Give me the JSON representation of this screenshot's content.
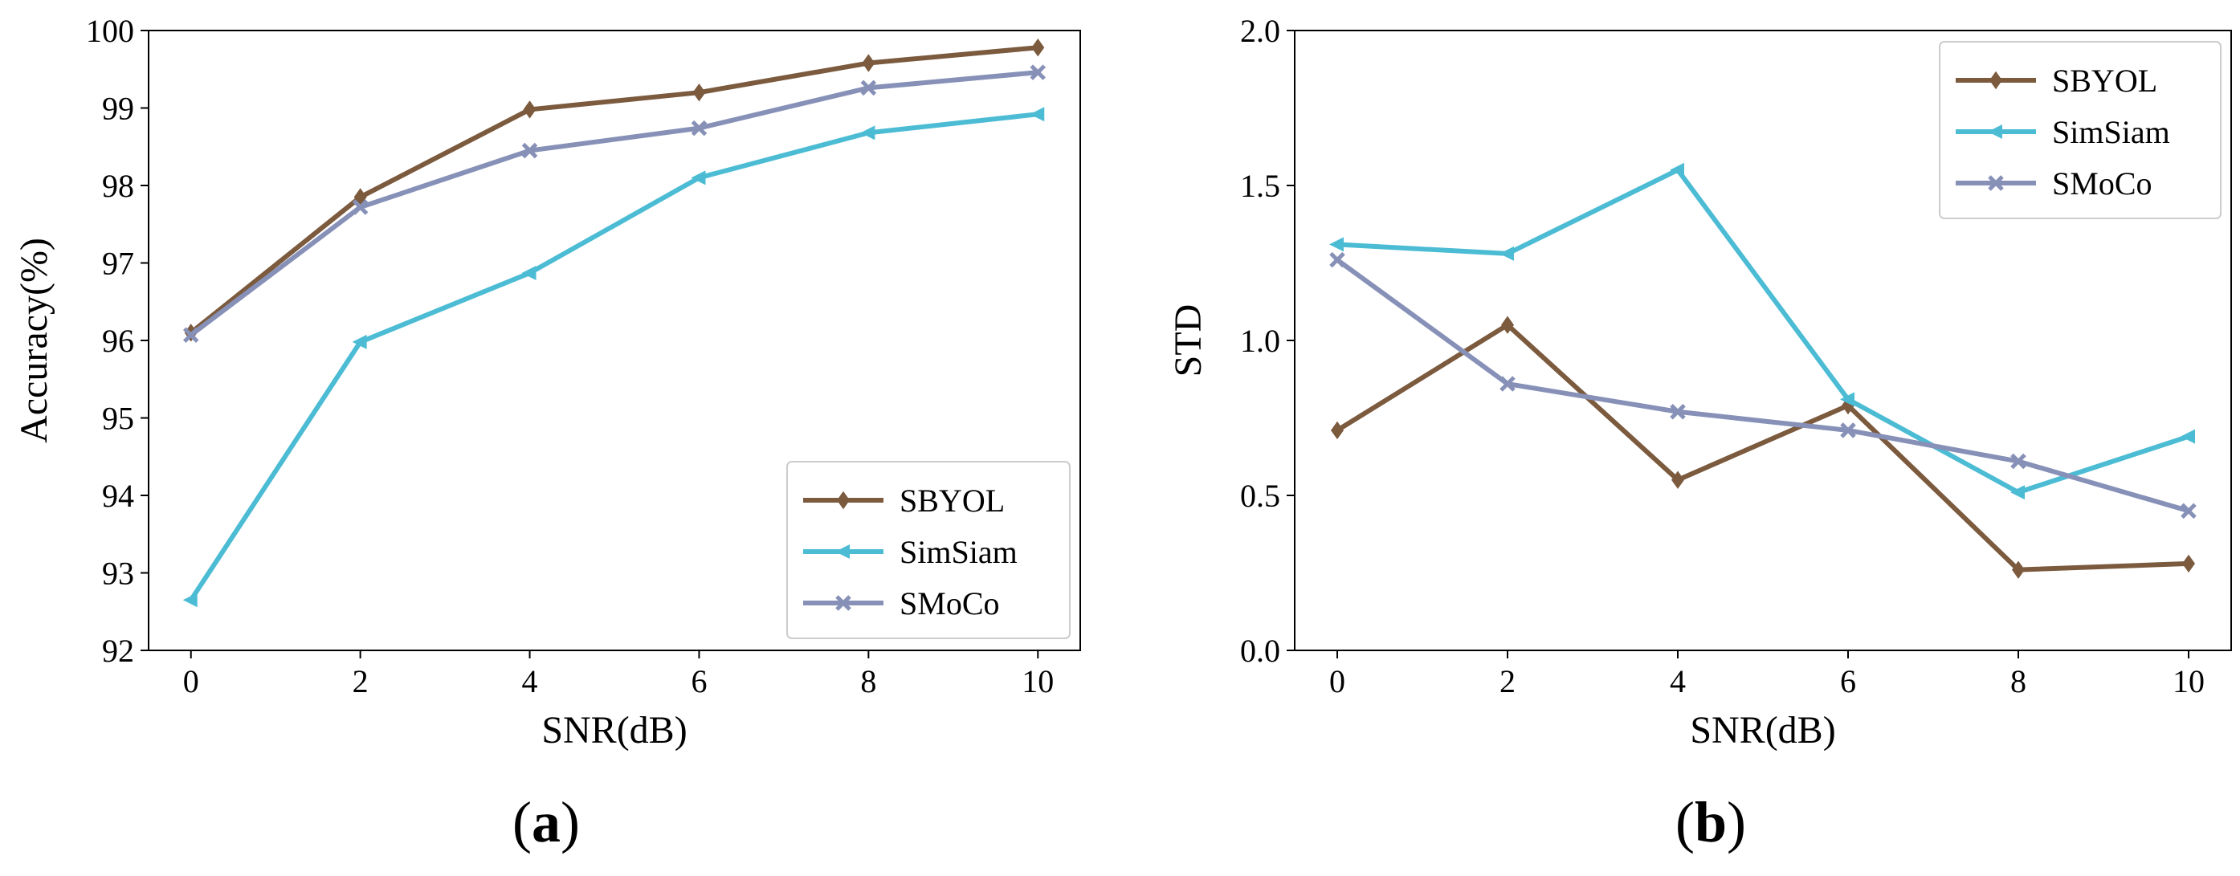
{
  "chart_data": [
    {
      "type": "line",
      "panel_label": "a",
      "xlabel": "SNR(dB)",
      "ylabel": "Accuracy(%)",
      "x": [
        0,
        2,
        4,
        6,
        8,
        10
      ],
      "xticks": [
        "0",
        "2",
        "4",
        "6",
        "8",
        "10"
      ],
      "ylim": [
        92,
        100
      ],
      "yticks": [
        "92",
        "93",
        "94",
        "95",
        "96",
        "97",
        "98",
        "99",
        "100"
      ],
      "grid": false,
      "legend_position": "bottom-right",
      "series": [
        {
          "name": "SBYOL",
          "color": "#7b5a3e",
          "marker": "diamond",
          "values": [
            96.1,
            97.85,
            98.98,
            99.2,
            99.58,
            99.78
          ]
        },
        {
          "name": "SimSiam",
          "color": "#4cbcd4",
          "marker": "triangle-left",
          "values": [
            92.65,
            95.98,
            96.87,
            98.1,
            98.68,
            98.92
          ]
        },
        {
          "name": "SMoCo",
          "color": "#8791b8",
          "marker": "x",
          "values": [
            96.07,
            97.72,
            98.45,
            98.74,
            99.26,
            99.46
          ]
        }
      ]
    },
    {
      "type": "line",
      "panel_label": "b",
      "xlabel": "SNR(dB)",
      "ylabel": "STD",
      "x": [
        0,
        2,
        4,
        6,
        8,
        10
      ],
      "xticks": [
        "0",
        "2",
        "4",
        "6",
        "8",
        "10"
      ],
      "ylim": [
        0.0,
        2.0
      ],
      "yticks": [
        "0.0",
        "0.5",
        "1.0",
        "1.5",
        "2.0"
      ],
      "grid": false,
      "legend_position": "top-right",
      "series": [
        {
          "name": "SBYOL",
          "color": "#7b5a3e",
          "marker": "diamond",
          "values": [
            0.71,
            1.05,
            0.55,
            0.79,
            0.26,
            0.28
          ]
        },
        {
          "name": "SimSiam",
          "color": "#4cbcd4",
          "marker": "triangle-left",
          "values": [
            1.31,
            1.28,
            1.55,
            0.81,
            0.51,
            0.69
          ]
        },
        {
          "name": "SMoCo",
          "color": "#8791b8",
          "marker": "x",
          "values": [
            1.26,
            0.86,
            0.77,
            0.71,
            0.61,
            0.45
          ]
        }
      ]
    }
  ]
}
